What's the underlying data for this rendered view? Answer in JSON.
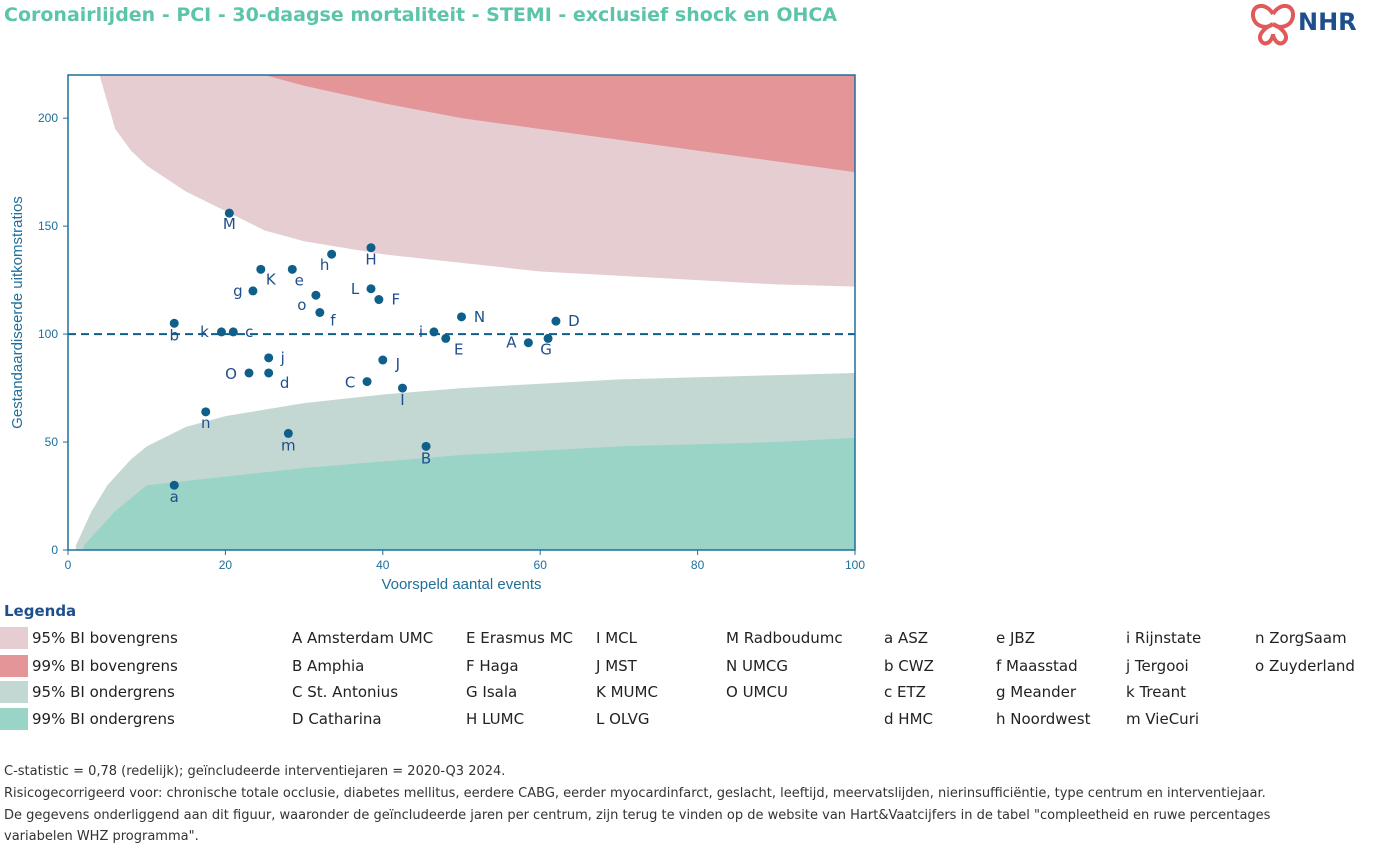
{
  "title": "Coronairlijden - PCI - 30-daagse mortaliteit - STEMI - exclusief shock en OHCA",
  "logo": {
    "text": "NHR",
    "icon": "nhr-heart-logo-icon",
    "icon_color": "#e05a5a",
    "text_color": "#1f4e8c"
  },
  "chart_data": {
    "type": "scatter",
    "xlabel": "Voorspeld aantal events",
    "ylabel": "Gestandaardiseerde uitkomstratios",
    "xlim": [
      0,
      100
    ],
    "ylim": [
      0,
      220
    ],
    "x_ticks": [
      0,
      20,
      40,
      60,
      80,
      100
    ],
    "y_ticks": [
      0,
      50,
      100,
      150,
      200
    ],
    "reference_line": 100,
    "colors": {
      "upper95": "#e5cdd1",
      "upper99": "#e39598",
      "lower95": "#c4d8d3",
      "lower99": "#9ad4c7",
      "point": "#0e5f8a",
      "axis": "#1f6f9a",
      "frame": "#1f6f9a",
      "label": "#1f4e8c"
    },
    "bands": {
      "upper95": [
        [
          4,
          220
        ],
        [
          6,
          195
        ],
        [
          8,
          185
        ],
        [
          10,
          178
        ],
        [
          15,
          166
        ],
        [
          20,
          157
        ],
        [
          25,
          148
        ],
        [
          30,
          143
        ],
        [
          40,
          137
        ],
        [
          50,
          133
        ],
        [
          60,
          129
        ],
        [
          70,
          127
        ],
        [
          80,
          125
        ],
        [
          90,
          123
        ],
        [
          100,
          122
        ]
      ],
      "upper99": [
        [
          25,
          220
        ],
        [
          30,
          215
        ],
        [
          40,
          207
        ],
        [
          50,
          200
        ],
        [
          60,
          195
        ],
        [
          70,
          190
        ],
        [
          80,
          185
        ],
        [
          90,
          180
        ],
        [
          100,
          175
        ]
      ],
      "lower95": [
        [
          1,
          2
        ],
        [
          3,
          18
        ],
        [
          5,
          30
        ],
        [
          8,
          42
        ],
        [
          10,
          48
        ],
        [
          15,
          57
        ],
        [
          20,
          62
        ],
        [
          30,
          68
        ],
        [
          40,
          72
        ],
        [
          50,
          75
        ],
        [
          60,
          77
        ],
        [
          70,
          79
        ],
        [
          80,
          80
        ],
        [
          90,
          81
        ],
        [
          100,
          82
        ]
      ],
      "lower99": [
        [
          2,
          2
        ],
        [
          4,
          10
        ],
        [
          6,
          18
        ],
        [
          10,
          30
        ],
        [
          20,
          34
        ],
        [
          30,
          38
        ],
        [
          40,
          41
        ],
        [
          50,
          44
        ],
        [
          60,
          46
        ],
        [
          70,
          48
        ],
        [
          80,
          49
        ],
        [
          90,
          50
        ],
        [
          100,
          52
        ]
      ]
    },
    "points": [
      {
        "label": "M",
        "x": 20.5,
        "y": 156,
        "lx": 0,
        "ly": 16
      },
      {
        "label": "h",
        "x": 33.5,
        "y": 137,
        "lx": -7,
        "ly": 16
      },
      {
        "label": "H",
        "x": 38.5,
        "y": 140,
        "lx": 0,
        "ly": 17
      },
      {
        "label": "K",
        "x": 24.5,
        "y": 130,
        "lx": 10,
        "ly": 15
      },
      {
        "label": "e",
        "x": 28.5,
        "y": 130,
        "lx": 7,
        "ly": 16
      },
      {
        "label": "g",
        "x": 23.5,
        "y": 120,
        "lx": -15,
        "ly": 5
      },
      {
        "label": "L",
        "x": 38.5,
        "y": 121,
        "lx": -16,
        "ly": 5
      },
      {
        "label": "F",
        "x": 39.5,
        "y": 116,
        "lx": 17,
        "ly": 5
      },
      {
        "label": "o",
        "x": 31.5,
        "y": 118,
        "lx": -14,
        "ly": 15
      },
      {
        "label": "f",
        "x": 32,
        "y": 110,
        "lx": 13,
        "ly": 13
      },
      {
        "label": "N",
        "x": 50,
        "y": 108,
        "lx": 18,
        "ly": 5
      },
      {
        "label": "D",
        "x": 62,
        "y": 106,
        "lx": 18,
        "ly": 5
      },
      {
        "label": "b",
        "x": 13.5,
        "y": 105,
        "lx": 0,
        "ly": 17
      },
      {
        "label": "k",
        "x": 19.5,
        "y": 101,
        "lx": -17,
        "ly": 5
      },
      {
        "label": "c",
        "x": 21,
        "y": 101,
        "lx": 16,
        "ly": 5
      },
      {
        "label": "i",
        "x": 46.5,
        "y": 101,
        "lx": -13,
        "ly": 5
      },
      {
        "label": "E",
        "x": 48,
        "y": 98,
        "lx": 13,
        "ly": 16
      },
      {
        "label": "A",
        "x": 58.5,
        "y": 96,
        "lx": -17,
        "ly": 5
      },
      {
        "label": "G",
        "x": 61,
        "y": 98,
        "lx": -2,
        "ly": 16
      },
      {
        "label": "j",
        "x": 25.5,
        "y": 89,
        "lx": 14,
        "ly": 5
      },
      {
        "label": "J",
        "x": 40,
        "y": 88,
        "lx": 15,
        "ly": 9
      },
      {
        "label": "O",
        "x": 23,
        "y": 82,
        "lx": -18,
        "ly": 6
      },
      {
        "label": "d",
        "x": 25.5,
        "y": 82,
        "lx": 16,
        "ly": 15
      },
      {
        "label": "C",
        "x": 38,
        "y": 78,
        "lx": -17,
        "ly": 6
      },
      {
        "label": "I",
        "x": 42.5,
        "y": 75,
        "lx": 0,
        "ly": 17
      },
      {
        "label": "n",
        "x": 17.5,
        "y": 64,
        "lx": 0,
        "ly": 16
      },
      {
        "label": "m",
        "x": 28,
        "y": 54,
        "lx": 0,
        "ly": 17
      },
      {
        "label": "B",
        "x": 45.5,
        "y": 48,
        "lx": 0,
        "ly": 17
      },
      {
        "label": "a",
        "x": 13.5,
        "y": 30,
        "lx": 0,
        "ly": 17
      }
    ]
  },
  "legend": {
    "title": "Legenda",
    "bands": [
      {
        "label": "95% BI bovengrens",
        "color": "#e5cdd1"
      },
      {
        "label": "99% BI bovengrens",
        "color": "#e39598"
      },
      {
        "label": "95% BI ondergrens",
        "color": "#c4d8d3"
      },
      {
        "label": "99% BI ondergrens",
        "color": "#9ad4c7"
      }
    ],
    "columns": [
      [
        "A Amsterdam UMC",
        "B Amphia",
        "C St. Antonius",
        "D Catharina"
      ],
      [
        "E Erasmus MC",
        "F Haga",
        "G Isala",
        "H LUMC"
      ],
      [
        "I MCL",
        "J MST",
        "K MUMC",
        "L OLVG"
      ],
      [
        "M Radboudumc",
        "N UMCG",
        "O UMCU"
      ],
      [
        "a ASZ",
        "b CWZ",
        "c ETZ",
        "d HMC"
      ],
      [
        "e JBZ",
        "f Maasstad",
        "g Meander",
        "h Noordwest"
      ],
      [
        "i Rijnstate",
        "j Tergooi",
        "k Treant",
        "m VieCuri"
      ],
      [
        "n ZorgSaam",
        "o Zuyderland"
      ]
    ]
  },
  "footer": [
    "C-statistic =  0,78 (redelijk); geïncludeerde interventiejaren = 2020-Q3 2024.",
    "Risicogecorrigeerd voor: chronische totale occlusie, diabetes mellitus, eerdere CABG, eerder myocardinfarct, geslacht, leeftijd, meervatslijden, nierinsufficiëntie, type centrum en interventiejaar.",
    "De gegevens onderliggend aan dit figuur, waaronder de geïncludeerde jaren per centrum, zijn terug te vinden op de website van Hart&Vaatcijfers in de tabel \"compleetheid en ruwe percentages",
    "variabelen WHZ programma\"."
  ]
}
